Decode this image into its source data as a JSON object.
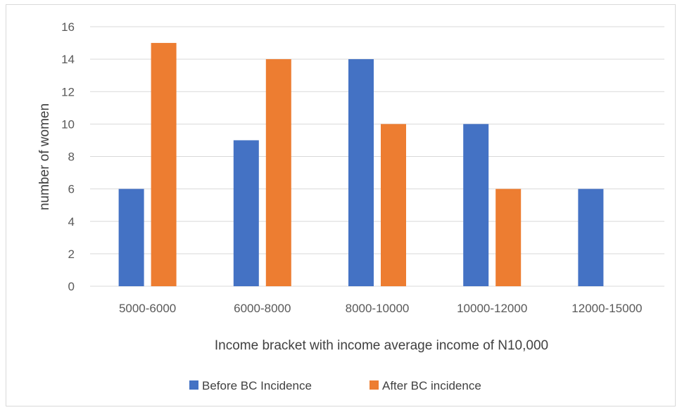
{
  "chart_data": {
    "type": "bar",
    "title": "",
    "xlabel": "Income bracket with income average income of N10,000",
    "ylabel": "number of women",
    "categories": [
      "5000-6000",
      "6000-8000",
      "8000-10000",
      "10000-12000",
      "12000-15000"
    ],
    "series": [
      {
        "name": "Before BC Incidence",
        "values": [
          6,
          9,
          14,
          10,
          6
        ],
        "color": "#4472C4"
      },
      {
        "name": "After BC incidence",
        "values": [
          15,
          14,
          10,
          6,
          0
        ],
        "color": "#ED7D31"
      }
    ],
    "ylim": [
      0,
      16
    ],
    "yticks": [
      "0",
      "2",
      "4",
      "6",
      "8",
      "10",
      "12",
      "14",
      "16"
    ],
    "grid": true,
    "legend_position": "bottom"
  }
}
